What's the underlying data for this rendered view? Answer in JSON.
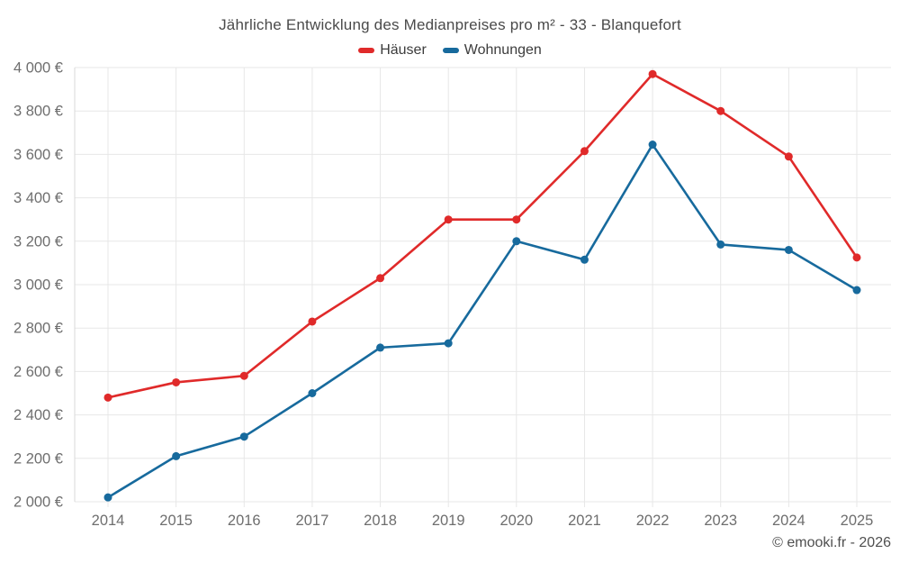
{
  "title": "Jährliche Entwicklung des Medianpreises pro m² - 33 - Blanquefort",
  "footer": "© emooki.fr - 2026",
  "colors": {
    "grid": "#e7e7e7",
    "axis": "#d9d9d9",
    "tick_text": "#6e6e6e",
    "title_text": "#4a4a4a",
    "hauser_red": "#e02a2a",
    "wohnungen_blue": "#176a9d"
  },
  "chart_data": {
    "type": "line",
    "title": "Jährliche Entwicklung des Medianpreises pro m² - 33 - Blanquefort",
    "xlabel": "",
    "ylabel": "",
    "grid": true,
    "legend_position": "top",
    "categories": [
      "2014",
      "2015",
      "2016",
      "2017",
      "2018",
      "2019",
      "2020",
      "2021",
      "2022",
      "2023",
      "2024",
      "2025"
    ],
    "series": [
      {
        "name": "Häuser",
        "color": "#e02a2a",
        "values": [
          2480,
          2550,
          2580,
          2830,
          3030,
          3300,
          3300,
          3615,
          3970,
          3800,
          3590,
          3125
        ]
      },
      {
        "name": "Wohnungen",
        "color": "#176a9d",
        "values": [
          2020,
          2210,
          2300,
          2500,
          2710,
          2730,
          3200,
          3115,
          3645,
          3185,
          3160,
          2975
        ]
      }
    ],
    "ylim": [
      2000,
      4000
    ],
    "ytick_step": 200,
    "ytick_labels": [
      "2 000 €",
      "2 200 €",
      "2 400 €",
      "2 600 €",
      "2 800 €",
      "3 000 €",
      "3 200 €",
      "3 400 €",
      "3 600 €",
      "3 800 €",
      "4 000 €"
    ]
  }
}
